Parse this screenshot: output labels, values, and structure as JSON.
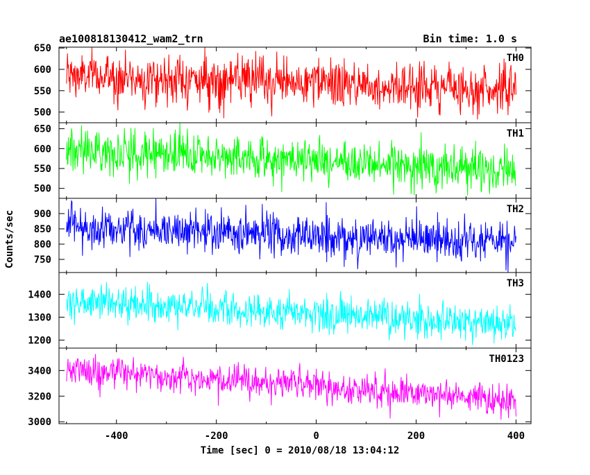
{
  "chart_data": {
    "type": "line",
    "title": "ae100818130412_wam2_trn",
    "subtitle": "Bin time: 1.0 s",
    "xlabel": "Time [sec] 0 = 2010/08/18 13:04:12",
    "ylabel": "Counts/sec",
    "xlim": [
      -515,
      430
    ],
    "x_range": [
      -500,
      400
    ],
    "x_step": 1,
    "x_ticks": [
      -400,
      -200,
      0,
      200,
      400
    ],
    "grid": false,
    "series": [
      {
        "name": "TH0",
        "color": "#ff0000",
        "ylim": [
          475,
          652
        ],
        "y_ticks": [
          500,
          550,
          600,
          650
        ],
        "trend": {
          "start": 585,
          "end": 553
        },
        "noise_sd": 28,
        "y_min": 470,
        "y_max": 655
      },
      {
        "name": "TH1",
        "color": "#00ff00",
        "ylim": [
          475,
          665
        ],
        "y_ticks": [
          500,
          550,
          600,
          650
        ],
        "trend": {
          "start": 598,
          "end": 545
        },
        "noise_sd": 27,
        "y_min": 475,
        "y_max": 665
      },
      {
        "name": "TH2",
        "color": "#0000ff",
        "ylim": [
          707,
          950
        ],
        "y_ticks": [
          750,
          800,
          850,
          900
        ],
        "trend": {
          "start": 858,
          "end": 800
        },
        "noise_sd": 35,
        "y_min": 707,
        "y_max": 950
      },
      {
        "name": "TH3",
        "color": "#00ffff",
        "ylim": [
          1165,
          1495
        ],
        "y_ticks": [
          1200,
          1300,
          1400
        ],
        "trend": {
          "start": 1370,
          "end": 1270
        },
        "noise_sd": 38,
        "y_min": 1165,
        "y_max": 1495
      },
      {
        "name": "TH0123",
        "color": "#ff00ff",
        "ylim": [
          2985,
          3575
        ],
        "y_ticks": [
          3000,
          3200,
          3400
        ],
        "trend": {
          "start": 3410,
          "end": 3170
        },
        "noise_sd": 60,
        "y_min": 2985,
        "y_max": 3575
      }
    ]
  }
}
